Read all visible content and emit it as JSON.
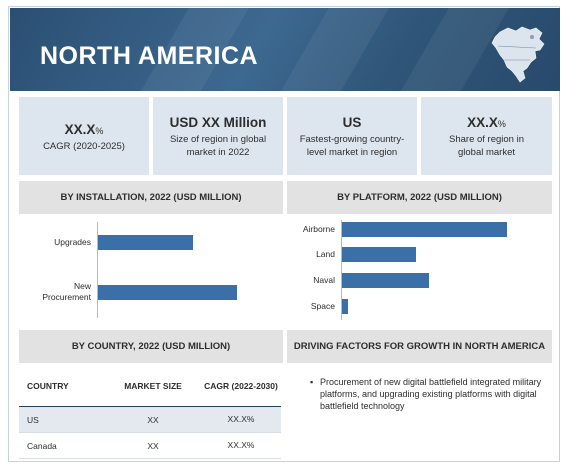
{
  "banner": {
    "title": "NORTH AMERICA",
    "map_icon": "north-america-map-icon",
    "color": "#2f5678"
  },
  "kpis": [
    {
      "value": "XX.X",
      "unit": "%",
      "label": "CAGR (2020-2025)"
    },
    {
      "value": "USD XX Million",
      "unit": "",
      "label": "Size of region in global market in 2022"
    },
    {
      "value": "US",
      "unit": "",
      "label": "Fastest-growing country-level market in region"
    },
    {
      "value": "XX.X",
      "unit": "%",
      "label": "Share of region in global market"
    }
  ],
  "installation": {
    "heading": "BY INSTALLATION, 2022 (USD MILLION)"
  },
  "platform": {
    "heading": "BY PLATFORM, 2022 (USD MILLION)"
  },
  "country": {
    "heading": "BY COUNTRY, 2022 (USD MILLION)",
    "columns": [
      "COUNTRY",
      "MARKET SIZE",
      "CAGR (2022-2030)"
    ],
    "rows": [
      {
        "country": "US",
        "size": "XX",
        "cagr": "XX.X%"
      },
      {
        "country": "Canada",
        "size": "XX",
        "cagr": "XX.X%"
      }
    ]
  },
  "drivers": {
    "heading": "DRIVING FACTORS FOR GROWTH IN NORTH AMERICA",
    "items": [
      "Procurement of new digital battlefield integrated military platforms, and upgrading existing platforms with digital battlefield technology"
    ]
  },
  "bar_color": "#3a6fa8",
  "chart_data": [
    {
      "type": "bar",
      "orientation": "horizontal",
      "title": "BY INSTALLATION, 2022 (USD MILLION)",
      "categories": [
        "Upgrades",
        "New Procurement"
      ],
      "values": [
        50,
        73
      ],
      "xlim": [
        0,
        100
      ],
      "grid": false
    },
    {
      "type": "bar",
      "orientation": "horizontal",
      "title": "BY PLATFORM, 2022 (USD MILLION)",
      "categories": [
        "Airborne",
        "Land",
        "Naval",
        "Space"
      ],
      "values": [
        80,
        36,
        42,
        3
      ],
      "xlim": [
        0,
        100
      ],
      "grid": false
    }
  ]
}
